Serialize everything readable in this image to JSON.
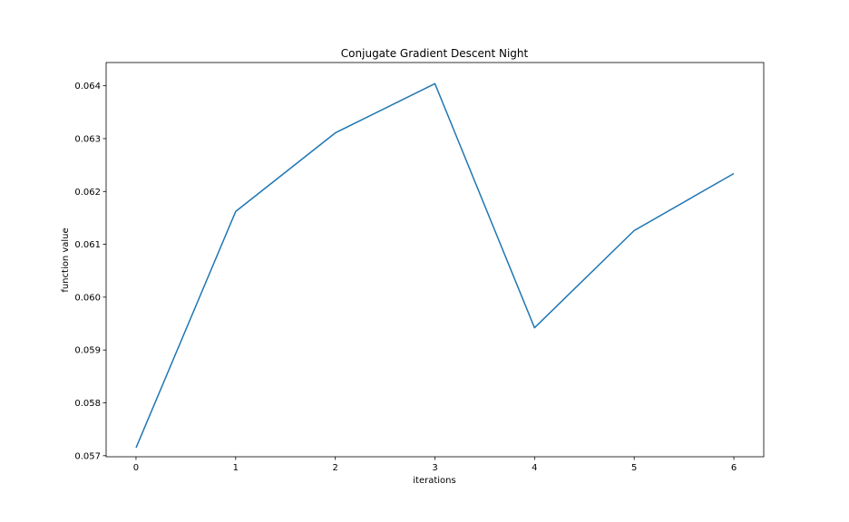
{
  "chart_data": {
    "type": "line",
    "title": "Conjugate Gradient Descent Night",
    "xlabel": "iterations",
    "ylabel": "function value",
    "x": [
      0,
      1,
      2,
      3,
      4,
      5,
      6
    ],
    "series": [
      {
        "values": [
          0.05715,
          0.06162,
          0.06311,
          0.06404,
          0.05942,
          0.06126,
          0.06234
        ],
        "color": "#1f77b4"
      }
    ],
    "xlim": [
      -0.3,
      6.3
    ],
    "ylim": [
      0.05698,
      0.06444
    ],
    "xticks": [
      0,
      1,
      2,
      3,
      4,
      5,
      6
    ],
    "xtick_labels": [
      "0",
      "1",
      "2",
      "3",
      "4",
      "5",
      "6"
    ],
    "yticks": [
      0.057,
      0.058,
      0.059,
      0.06,
      0.061,
      0.062,
      0.063,
      0.064
    ],
    "ytick_labels": [
      "0.057",
      "0.058",
      "0.059",
      "0.060",
      "0.061",
      "0.062",
      "0.063",
      "0.064"
    ],
    "grid": false,
    "legend": false
  }
}
